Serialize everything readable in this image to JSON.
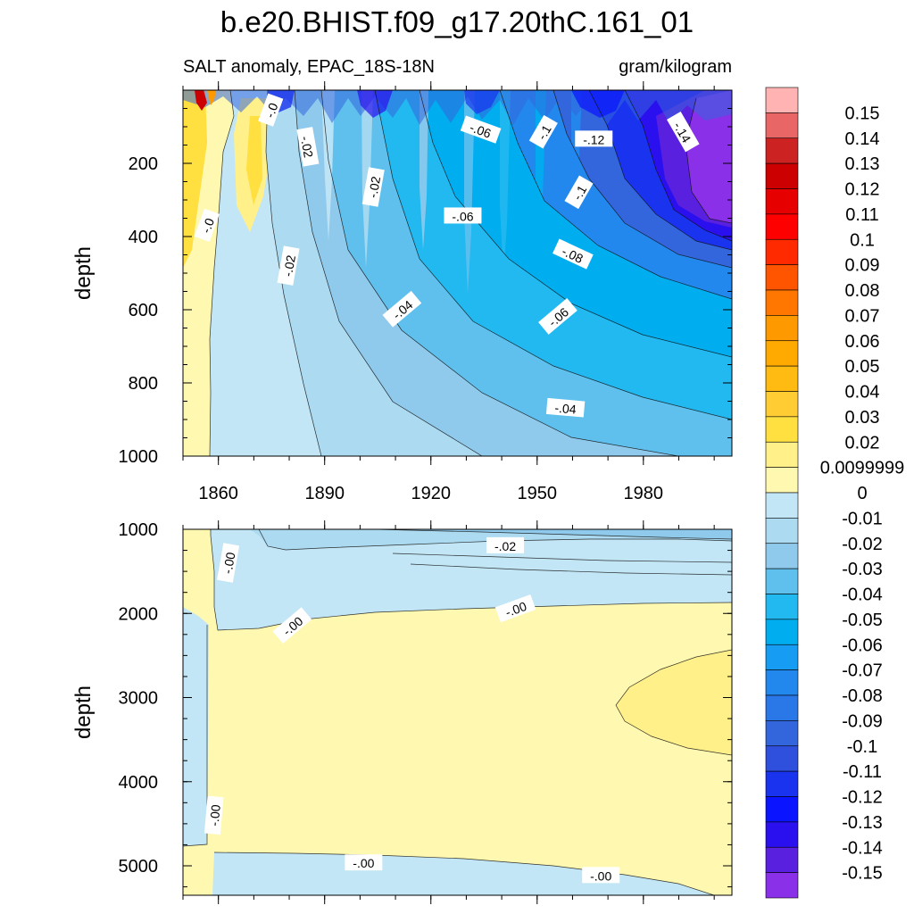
{
  "figure_title": "b.e20.BHIST.f09_g17.20thC.161_01",
  "chart_data": [
    {
      "type": "heatmap",
      "panel": "upper",
      "subtitle_left": "SALT anomaly, EPAC_18S-18N",
      "subtitle_right": "gram/kilogram",
      "ylabel": "depth",
      "xlim": [
        1850,
        2005
      ],
      "ylim": [
        0,
        1000
      ],
      "y_reversed": true,
      "xticks": [
        1860,
        1890,
        1920,
        1950,
        1980
      ],
      "yticks": [
        200,
        400,
        600,
        800,
        1000
      ],
      "contour_labels": [
        {
          "text": "-.0",
          "x": 1875,
          "y": 55,
          "rot": 70
        },
        {
          "text": "-.02",
          "x": 1885,
          "y": 155,
          "rot": -80
        },
        {
          "text": "-.06",
          "x": 1934,
          "y": 110,
          "rot": -20
        },
        {
          "text": "-.1",
          "x": 1952,
          "y": 115,
          "rot": 60
        },
        {
          "text": "-.12",
          "x": 1966,
          "y": 135,
          "rot": 0
        },
        {
          "text": "-.14",
          "x": 1991,
          "y": 115,
          "rot": -60
        },
        {
          "text": "-.02",
          "x": 1904,
          "y": 265,
          "rot": 80
        },
        {
          "text": "-.06",
          "x": 1929,
          "y": 345,
          "rot": 0
        },
        {
          "text": "-.1",
          "x": 1962,
          "y": 280,
          "rot": 60
        },
        {
          "text": "-.0",
          "x": 1857,
          "y": 370,
          "rot": 70
        },
        {
          "text": "-.02",
          "x": 1880,
          "y": 480,
          "rot": 80
        },
        {
          "text": "-.08",
          "x": 1960,
          "y": 450,
          "rot": -25
        },
        {
          "text": "-.04",
          "x": 1912,
          "y": 600,
          "rot": 40
        },
        {
          "text": "-.06",
          "x": 1956,
          "y": 620,
          "rot": 40
        },
        {
          "text": "-.04",
          "x": 1958,
          "y": 870,
          "rot": -5
        }
      ]
    },
    {
      "type": "heatmap",
      "panel": "lower",
      "ylabel": "depth",
      "xlim": [
        1850,
        2005
      ],
      "ylim": [
        1000,
        5350
      ],
      "y_reversed": true,
      "yticks": [
        1000,
        2000,
        3000,
        4000,
        5000
      ],
      "contour_labels": [
        {
          "text": "-.02",
          "x": 1941,
          "y": 1200,
          "rot": 0
        },
        {
          "text": "-.00",
          "x": 1863,
          "y": 1400,
          "rot": 80
        },
        {
          "text": "-.00",
          "x": 1944,
          "y": 1950,
          "rot": 20
        },
        {
          "text": "-.00",
          "x": 1881,
          "y": 2150,
          "rot": 40
        },
        {
          "text": "-.00",
          "x": 1859,
          "y": 4400,
          "rot": 85
        },
        {
          "text": "-.00",
          "x": 1901,
          "y": 4970,
          "rot": 0
        },
        {
          "text": "-.00",
          "x": 1968,
          "y": 5120,
          "rot": 0
        }
      ]
    }
  ],
  "colorbar": {
    "labels": [
      "0.15",
      "0.14",
      "0.13",
      "0.12",
      "0.11",
      "0.1",
      "0.09",
      "0.08",
      "0.07",
      "0.06",
      "0.05",
      "0.04",
      "0.03",
      "0.02",
      "0.0099999",
      "0",
      "-0.01",
      "-0.02",
      "-0.03",
      "-0.04",
      "-0.05",
      "-0.06",
      "-0.07",
      "-0.08",
      "-0.09",
      "-0.1",
      "-0.11",
      "-0.12",
      "-0.13",
      "-0.14",
      "-0.15"
    ],
    "colors": [
      "#ffb3b3",
      "#e86666",
      "#cc2222",
      "#cc0000",
      "#e60000",
      "#ff0000",
      "#ff2a00",
      "#ff5500",
      "#ff7700",
      "#ff9900",
      "#ffaa00",
      "#ffbb11",
      "#ffcc33",
      "#ffe040",
      "#fff08a",
      "#fff8b0",
      "#c2e6f5",
      "#acdaf0",
      "#8fcaec",
      "#5fc0ee",
      "#22b8f0",
      "#00aef0",
      "#169cf2",
      "#2288ee",
      "#2a77e8",
      "#3366dd",
      "#2f4fdd",
      "#1a33ee",
      "#0a14ff",
      "#2a10ee",
      "#5a20e0",
      "#8a30e8"
    ]
  }
}
